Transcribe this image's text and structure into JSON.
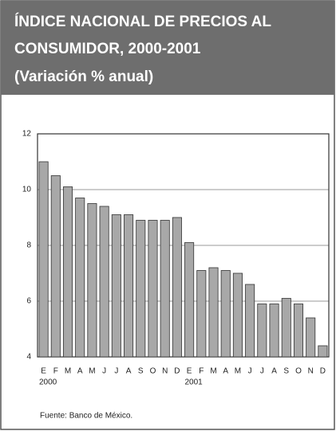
{
  "chart_data": {
    "type": "bar",
    "title": [
      "ÍNDICE NACIONAL DE PRECIOS AL",
      "CONSUMIDOR, 2000-2001"
    ],
    "subtitle": "(Variación % anual)",
    "categories": [
      "E",
      "F",
      "M",
      "A",
      "M",
      "J",
      "J",
      "A",
      "S",
      "O",
      "N",
      "D",
      "E",
      "F",
      "M",
      "A",
      "M",
      "J",
      "J",
      "A",
      "S",
      "O",
      "N",
      "D"
    ],
    "year_labels": [
      "2000",
      "2001"
    ],
    "values": [
      11.0,
      10.5,
      10.1,
      9.7,
      9.5,
      9.4,
      9.1,
      9.1,
      8.9,
      8.9,
      8.9,
      9.0,
      8.1,
      7.1,
      7.2,
      7.1,
      7.0,
      6.6,
      5.9,
      5.9,
      6.1,
      5.9,
      5.4,
      4.4
    ],
    "color": "#a8a8a8",
    "ylim": [
      4,
      12
    ],
    "yticks": [
      4,
      6,
      8,
      10,
      12
    ],
    "grid": true,
    "source": "Fuente: Banco de México."
  }
}
